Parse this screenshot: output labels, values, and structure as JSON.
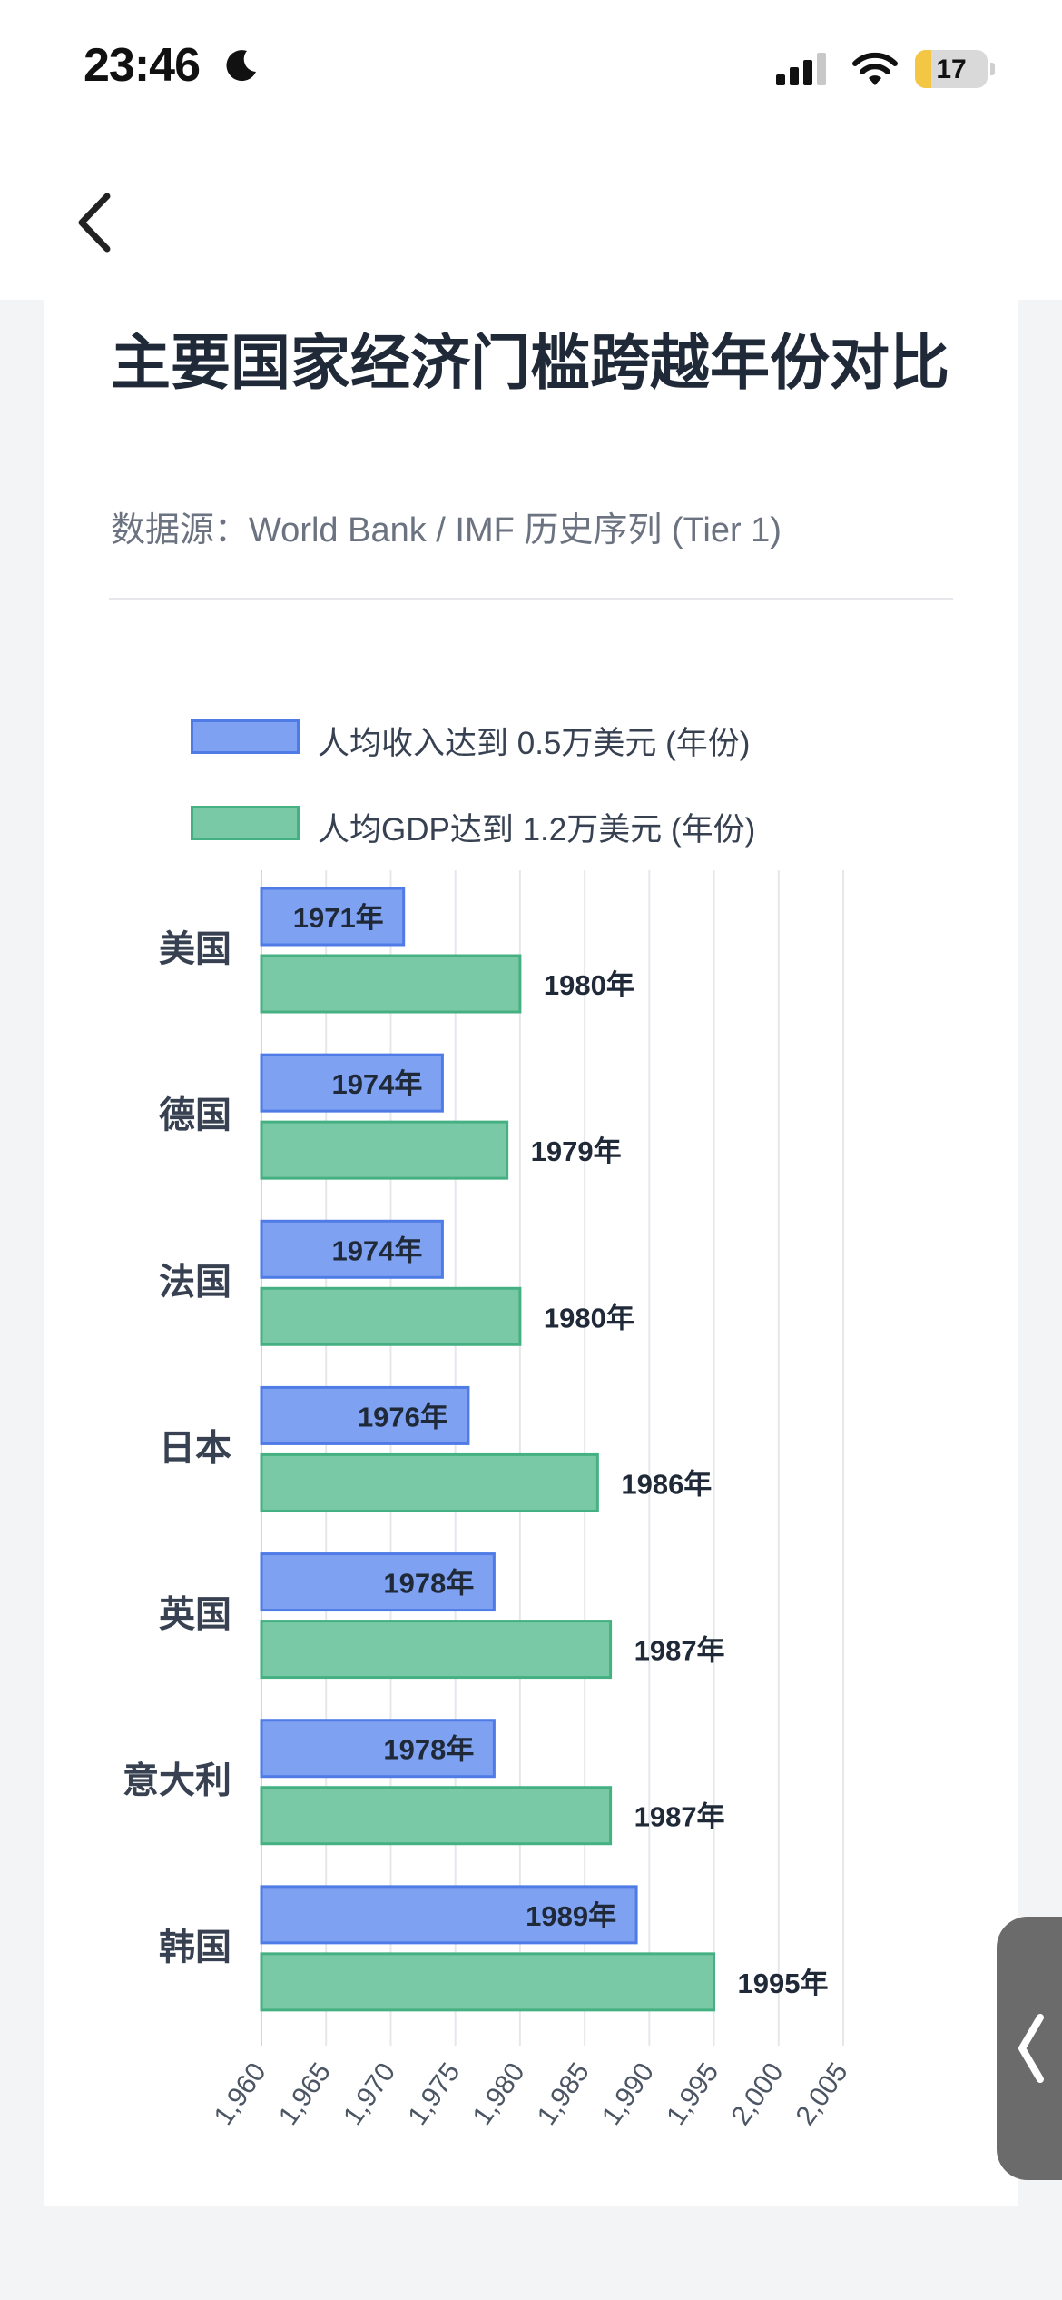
{
  "status_bar": {
    "time": "23:46",
    "battery": "17"
  },
  "header": {
    "title": "主要国家经济门槛跨越年份对比",
    "subtitle": "数据源：World Bank / IMF 历史序列 (Tier 1)"
  },
  "colors": {
    "series1": "#7ea1f1",
    "series1_border": "#4f7be6",
    "series2": "#7ac9a6",
    "series2_border": "#45b182"
  },
  "chart_data": {
    "type": "bar",
    "orientation": "horizontal",
    "title": "主要国家经济门槛跨越年份对比",
    "categories": [
      "美国",
      "德国",
      "法国",
      "日本",
      "英国",
      "意大利",
      "韩国"
    ],
    "series": [
      {
        "name": "人均收入达到 0.5万美元 (年份)",
        "values": [
          1971,
          1974,
          1974,
          1976,
          1978,
          1978,
          1989
        ],
        "labels": [
          "1971年",
          "1974年",
          "1974年",
          "1976年",
          "1978年",
          "1978年",
          "1989年"
        ]
      },
      {
        "name": "人均GDP达到 1.2万美元 (年份)",
        "values": [
          1980,
          1979,
          1980,
          1986,
          1987,
          1987,
          1995
        ],
        "labels": [
          "1980年",
          "1979年",
          "1980年",
          "1986年",
          "1987年",
          "1987年",
          "1995年"
        ]
      }
    ],
    "xlim": [
      1960,
      2005
    ],
    "x_ticks": [
      "1,960",
      "1,965",
      "1,970",
      "1,975",
      "1,980",
      "1,985",
      "1,990",
      "1,995",
      "2,000",
      "2,005"
    ],
    "legend": "top",
    "grid": true
  }
}
